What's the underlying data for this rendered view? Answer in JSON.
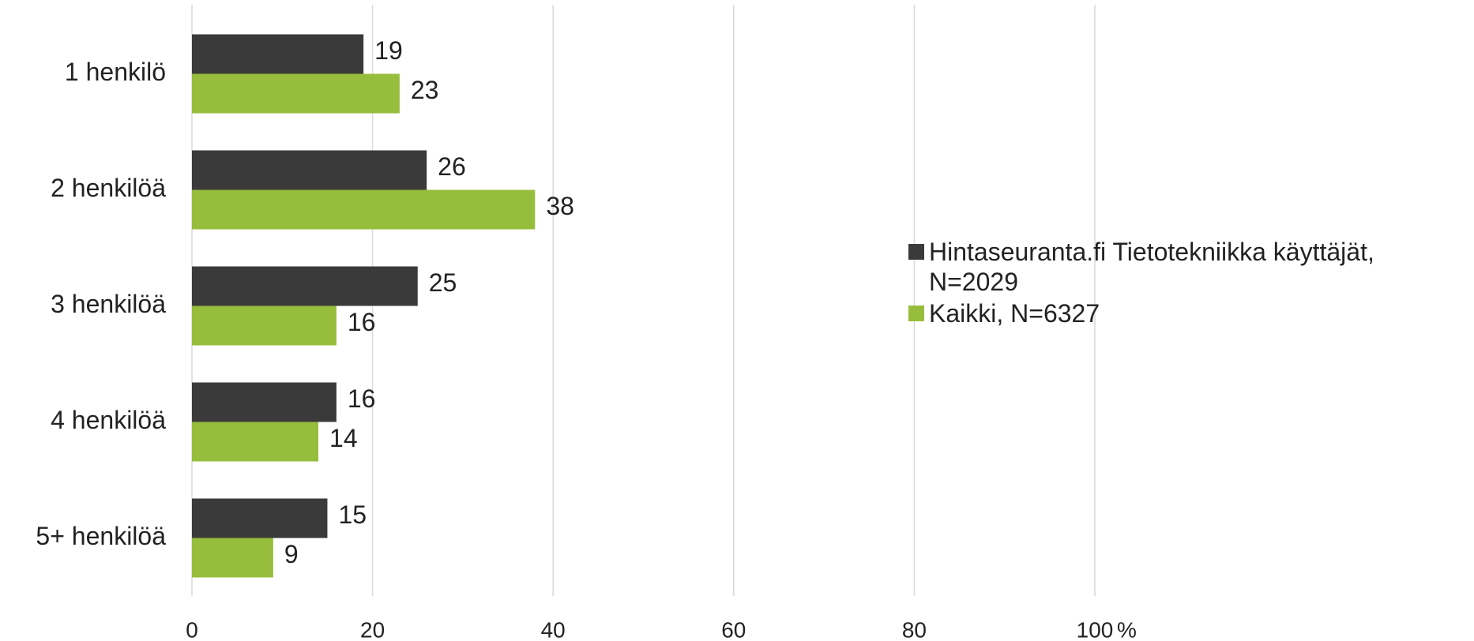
{
  "chart_data": {
    "type": "hbar",
    "categories": [
      "1 henkilö",
      "2 henkilöä",
      "3 henkilöä",
      "4 henkilöä",
      "5+ henkilöä"
    ],
    "series": [
      {
        "name": "Hintaseuranta.fi Tietotekniikka käyttäjät, N=2029",
        "color": "#3a3a3a",
        "values": [
          19,
          26,
          25,
          16,
          15
        ]
      },
      {
        "name": "Kaikki, N=6327",
        "color": "#97bd3c",
        "values": [
          23,
          38,
          16,
          14,
          9
        ]
      }
    ],
    "xlim": [
      0,
      100
    ],
    "xticks": [
      0,
      20,
      40,
      60,
      80,
      100
    ],
    "xlabel": "%",
    "grid": true,
    "legend": "right"
  }
}
